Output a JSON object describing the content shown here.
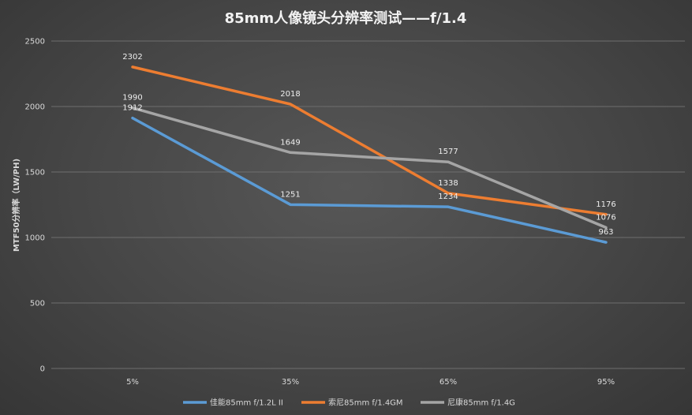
{
  "chart_data": {
    "type": "line",
    "title": "85mm人像镜头分辨率测试——f/1.4",
    "xlabel": "",
    "ylabel": "MTF50分辨率（LW/PH)",
    "categories": [
      "5%",
      "35%",
      "65%",
      "95%"
    ],
    "ylim": [
      0,
      2500
    ],
    "yticks": [
      0,
      500,
      1000,
      1500,
      2000,
      2500
    ],
    "grid": true,
    "legend": "bottom",
    "series": [
      {
        "name": "佳能85mm f/1.2L II",
        "color": "#5b9bd5",
        "values": [
          1912,
          1251,
          1234,
          963
        ]
      },
      {
        "name": "索尼85mm f/1.4GM",
        "color": "#ed7d31",
        "values": [
          2302,
          2018,
          1338,
          1176
        ]
      },
      {
        "name": "尼康85mm f/1.4G",
        "color": "#a5a5a5",
        "values": [
          1990,
          1649,
          1577,
          1076
        ]
      }
    ]
  }
}
